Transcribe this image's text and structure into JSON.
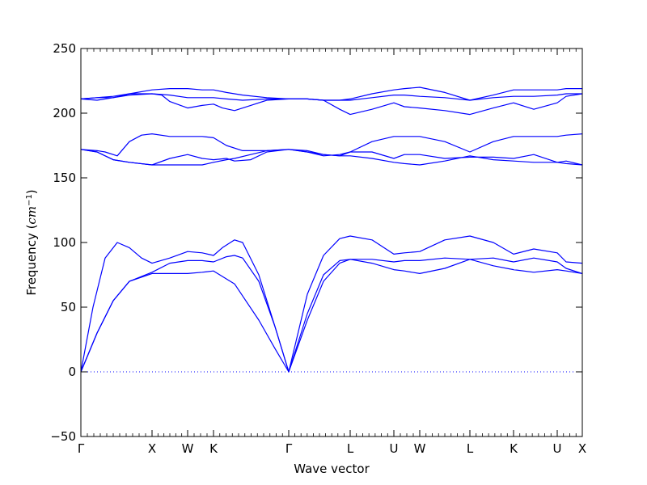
{
  "chart_data": {
    "type": "line",
    "title": "",
    "xlabel": "Wave vector",
    "ylabel_text": "Frequency (",
    "ylabel_unit": "cm",
    "ylabel_sup": "−1",
    "ylabel_close": ")",
    "ylim": [
      -50,
      250
    ],
    "yticks": [
      -50,
      0,
      50,
      100,
      150,
      200,
      250
    ],
    "xlim": [
      0,
      620
    ],
    "special_points": [
      {
        "label": "Γ",
        "x": 0
      },
      {
        "label": "X",
        "x": 88
      },
      {
        "label": "W",
        "x": 132
      },
      {
        "label": "K",
        "x": 164
      },
      {
        "label": "Γ",
        "x": 257
      },
      {
        "label": "L",
        "x": 333
      },
      {
        "label": "U",
        "x": 387
      },
      {
        "label": "W",
        "x": 419
      },
      {
        "label": "L",
        "x": 481
      },
      {
        "label": "K",
        "x": 535
      },
      {
        "label": "U",
        "x": 589
      },
      {
        "label": "X",
        "x": 620
      }
    ],
    "zero_line": 0,
    "line_color": "#0000ff",
    "series": [
      {
        "values": [
          [
            0,
            0
          ],
          [
            20,
            30
          ],
          [
            40,
            55
          ],
          [
            60,
            70
          ],
          [
            88,
            76
          ],
          [
            110,
            76
          ],
          [
            132,
            76
          ],
          [
            150,
            77
          ],
          [
            164,
            78
          ],
          [
            190,
            68
          ],
          [
            220,
            40
          ],
          [
            240,
            18
          ],
          [
            257,
            0
          ],
          [
            280,
            40
          ],
          [
            300,
            70
          ],
          [
            320,
            84
          ],
          [
            333,
            87
          ],
          [
            360,
            84
          ],
          [
            387,
            79
          ],
          [
            400,
            78
          ],
          [
            419,
            76
          ],
          [
            450,
            80
          ],
          [
            481,
            87
          ],
          [
            510,
            82
          ],
          [
            535,
            79
          ],
          [
            560,
            77
          ],
          [
            589,
            79
          ],
          [
            600,
            78
          ],
          [
            620,
            76
          ]
        ]
      },
      {
        "values": [
          [
            0,
            0
          ],
          [
            20,
            30
          ],
          [
            40,
            55
          ],
          [
            60,
            70
          ],
          [
            88,
            77
          ],
          [
            110,
            84
          ],
          [
            132,
            86
          ],
          [
            150,
            86
          ],
          [
            164,
            85
          ],
          [
            180,
            89
          ],
          [
            190,
            90
          ],
          [
            200,
            88
          ],
          [
            220,
            70
          ],
          [
            240,
            35
          ],
          [
            257,
            0
          ],
          [
            280,
            45
          ],
          [
            300,
            75
          ],
          [
            320,
            86
          ],
          [
            333,
            87
          ],
          [
            360,
            87
          ],
          [
            387,
            85
          ],
          [
            400,
            86
          ],
          [
            419,
            86
          ],
          [
            450,
            88
          ],
          [
            481,
            87
          ],
          [
            510,
            88
          ],
          [
            535,
            85
          ],
          [
            560,
            88
          ],
          [
            589,
            85
          ],
          [
            600,
            80
          ],
          [
            620,
            76
          ]
        ]
      },
      {
        "values": [
          [
            0,
            0
          ],
          [
            15,
            50
          ],
          [
            30,
            88
          ],
          [
            45,
            100
          ],
          [
            60,
            96
          ],
          [
            75,
            88
          ],
          [
            88,
            84
          ],
          [
            110,
            88
          ],
          [
            132,
            93
          ],
          [
            150,
            92
          ],
          [
            164,
            90
          ],
          [
            175,
            96
          ],
          [
            190,
            102
          ],
          [
            200,
            100
          ],
          [
            220,
            75
          ],
          [
            240,
            35
          ],
          [
            257,
            0
          ],
          [
            280,
            60
          ],
          [
            300,
            90
          ],
          [
            320,
            103
          ],
          [
            333,
            105
          ],
          [
            360,
            102
          ],
          [
            387,
            91
          ],
          [
            400,
            92
          ],
          [
            419,
            93
          ],
          [
            450,
            102
          ],
          [
            481,
            105
          ],
          [
            510,
            100
          ],
          [
            535,
            91
          ],
          [
            560,
            95
          ],
          [
            589,
            92
          ],
          [
            600,
            85
          ],
          [
            620,
            84
          ]
        ]
      },
      {
        "values": [
          [
            0,
            172
          ],
          [
            20,
            170
          ],
          [
            40,
            164
          ],
          [
            60,
            162
          ],
          [
            88,
            160
          ],
          [
            110,
            160
          ],
          [
            132,
            160
          ],
          [
            150,
            160
          ],
          [
            164,
            162
          ],
          [
            180,
            164
          ],
          [
            190,
            165
          ],
          [
            210,
            168
          ],
          [
            230,
            171
          ],
          [
            257,
            172
          ],
          [
            280,
            170
          ],
          [
            300,
            168
          ],
          [
            320,
            167
          ],
          [
            333,
            167
          ],
          [
            360,
            165
          ],
          [
            387,
            162
          ],
          [
            400,
            161
          ],
          [
            419,
            160
          ],
          [
            450,
            163
          ],
          [
            481,
            167
          ],
          [
            510,
            164
          ],
          [
            535,
            163
          ],
          [
            560,
            162
          ],
          [
            589,
            162
          ],
          [
            600,
            161
          ],
          [
            620,
            160
          ]
        ]
      },
      {
        "values": [
          [
            0,
            172
          ],
          [
            20,
            170
          ],
          [
            40,
            164
          ],
          [
            60,
            162
          ],
          [
            88,
            160
          ],
          [
            110,
            165
          ],
          [
            132,
            168
          ],
          [
            150,
            165
          ],
          [
            164,
            164
          ],
          [
            180,
            165
          ],
          [
            190,
            163
          ],
          [
            210,
            164
          ],
          [
            230,
            170
          ],
          [
            257,
            172
          ],
          [
            280,
            170
          ],
          [
            300,
            167
          ],
          [
            320,
            168
          ],
          [
            333,
            170
          ],
          [
            360,
            170
          ],
          [
            387,
            165
          ],
          [
            400,
            168
          ],
          [
            419,
            168
          ],
          [
            450,
            165
          ],
          [
            481,
            166
          ],
          [
            510,
            166
          ],
          [
            535,
            165
          ],
          [
            560,
            168
          ],
          [
            589,
            162
          ],
          [
            600,
            163
          ],
          [
            620,
            160
          ]
        ]
      },
      {
        "values": [
          [
            0,
            172
          ],
          [
            20,
            171
          ],
          [
            30,
            170
          ],
          [
            45,
            167
          ],
          [
            60,
            178
          ],
          [
            75,
            183
          ],
          [
            88,
            184
          ],
          [
            110,
            182
          ],
          [
            132,
            182
          ],
          [
            150,
            182
          ],
          [
            164,
            181
          ],
          [
            180,
            175
          ],
          [
            200,
            171
          ],
          [
            230,
            171
          ],
          [
            257,
            172
          ],
          [
            280,
            171
          ],
          [
            300,
            168
          ],
          [
            320,
            167
          ],
          [
            333,
            170
          ],
          [
            360,
            178
          ],
          [
            387,
            182
          ],
          [
            400,
            182
          ],
          [
            419,
            182
          ],
          [
            450,
            178
          ],
          [
            481,
            170
          ],
          [
            510,
            178
          ],
          [
            535,
            182
          ],
          [
            560,
            182
          ],
          [
            589,
            182
          ],
          [
            600,
            183
          ],
          [
            620,
            184
          ]
        ]
      },
      {
        "values": [
          [
            0,
            211
          ],
          [
            20,
            212
          ],
          [
            40,
            213
          ],
          [
            60,
            215
          ],
          [
            88,
            215
          ],
          [
            100,
            214
          ],
          [
            110,
            209
          ],
          [
            132,
            204
          ],
          [
            150,
            206
          ],
          [
            164,
            207
          ],
          [
            175,
            204
          ],
          [
            190,
            202
          ],
          [
            210,
            206
          ],
          [
            230,
            210
          ],
          [
            257,
            211
          ],
          [
            280,
            211
          ],
          [
            300,
            210
          ],
          [
            320,
            203
          ],
          [
            333,
            199
          ],
          [
            360,
            203
          ],
          [
            387,
            208
          ],
          [
            400,
            205
          ],
          [
            419,
            204
          ],
          [
            450,
            202
          ],
          [
            481,
            199
          ],
          [
            510,
            204
          ],
          [
            535,
            208
          ],
          [
            560,
            203
          ],
          [
            589,
            208
          ],
          [
            600,
            213
          ],
          [
            620,
            215
          ]
        ]
      },
      {
        "values": [
          [
            0,
            211
          ],
          [
            20,
            210
          ],
          [
            40,
            212
          ],
          [
            60,
            214
          ],
          [
            88,
            215
          ],
          [
            110,
            214
          ],
          [
            132,
            212
          ],
          [
            150,
            212
          ],
          [
            164,
            212
          ],
          [
            180,
            211
          ],
          [
            200,
            210
          ],
          [
            230,
            211
          ],
          [
            257,
            211
          ],
          [
            280,
            211
          ],
          [
            300,
            210
          ],
          [
            320,
            210
          ],
          [
            333,
            210
          ],
          [
            360,
            212
          ],
          [
            387,
            214
          ],
          [
            400,
            214
          ],
          [
            419,
            213
          ],
          [
            450,
            212
          ],
          [
            481,
            210
          ],
          [
            510,
            212
          ],
          [
            535,
            213
          ],
          [
            560,
            213
          ],
          [
            589,
            214
          ],
          [
            600,
            215
          ],
          [
            620,
            215
          ]
        ]
      },
      {
        "values": [
          [
            0,
            211
          ],
          [
            20,
            212
          ],
          [
            40,
            212
          ],
          [
            60,
            215
          ],
          [
            88,
            218
          ],
          [
            110,
            219
          ],
          [
            132,
            219
          ],
          [
            150,
            218
          ],
          [
            164,
            218
          ],
          [
            180,
            216
          ],
          [
            200,
            214
          ],
          [
            230,
            212
          ],
          [
            257,
            211
          ],
          [
            280,
            211
          ],
          [
            300,
            210
          ],
          [
            320,
            210
          ],
          [
            333,
            211
          ],
          [
            360,
            215
          ],
          [
            387,
            218
          ],
          [
            400,
            219
          ],
          [
            419,
            220
          ],
          [
            450,
            216
          ],
          [
            481,
            210
          ],
          [
            510,
            214
          ],
          [
            535,
            218
          ],
          [
            560,
            218
          ],
          [
            589,
            218
          ],
          [
            600,
            219
          ],
          [
            620,
            219
          ]
        ]
      }
    ]
  }
}
